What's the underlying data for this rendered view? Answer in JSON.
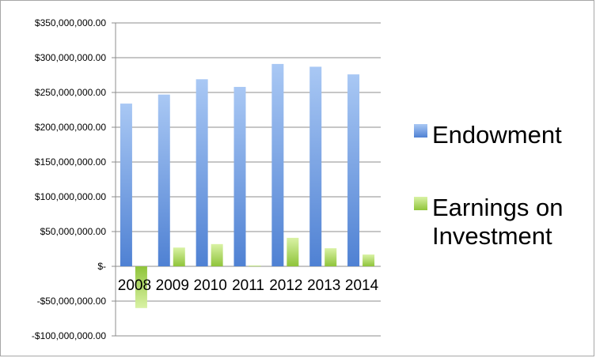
{
  "chart_data": {
    "type": "bar",
    "categories": [
      "2008",
      "2009",
      "2010",
      "2011",
      "2012",
      "2013",
      "2014"
    ],
    "series": [
      {
        "name": "Endowment",
        "values": [
          234000000,
          247000000,
          269000000,
          258000000,
          291000000,
          287000000,
          276000000
        ],
        "color_top": "#a9c8f4",
        "color_bottom": "#4f81d3"
      },
      {
        "name": "Earnings on Investment",
        "values": [
          -60000000,
          27000000,
          32000000,
          1000000,
          41000000,
          26000000,
          17000000
        ],
        "color_top": "#d9f2a5",
        "color_bottom": "#8fc43a"
      }
    ],
    "ylim": [
      -100000000,
      350000000
    ],
    "y_ticks": [
      350000000,
      300000000,
      250000000,
      200000000,
      150000000,
      100000000,
      50000000,
      0,
      -50000000,
      -100000000
    ],
    "y_tick_labels": [
      "$350,000,000.00",
      "$300,000,000.00",
      "$250,000,000.00",
      "$200,000,000.00",
      "$150,000,000.00",
      "$100,000,000.00",
      "$50,000,000.00",
      "$-",
      "-$50,000,000.00",
      "-$100,000,000.00"
    ],
    "legend_labels": [
      [
        "Endowment"
      ],
      [
        "Earnings on",
        "Investment"
      ]
    ],
    "legend_position": "right",
    "grid": true,
    "title": "",
    "xlabel": "",
    "ylabel": ""
  }
}
